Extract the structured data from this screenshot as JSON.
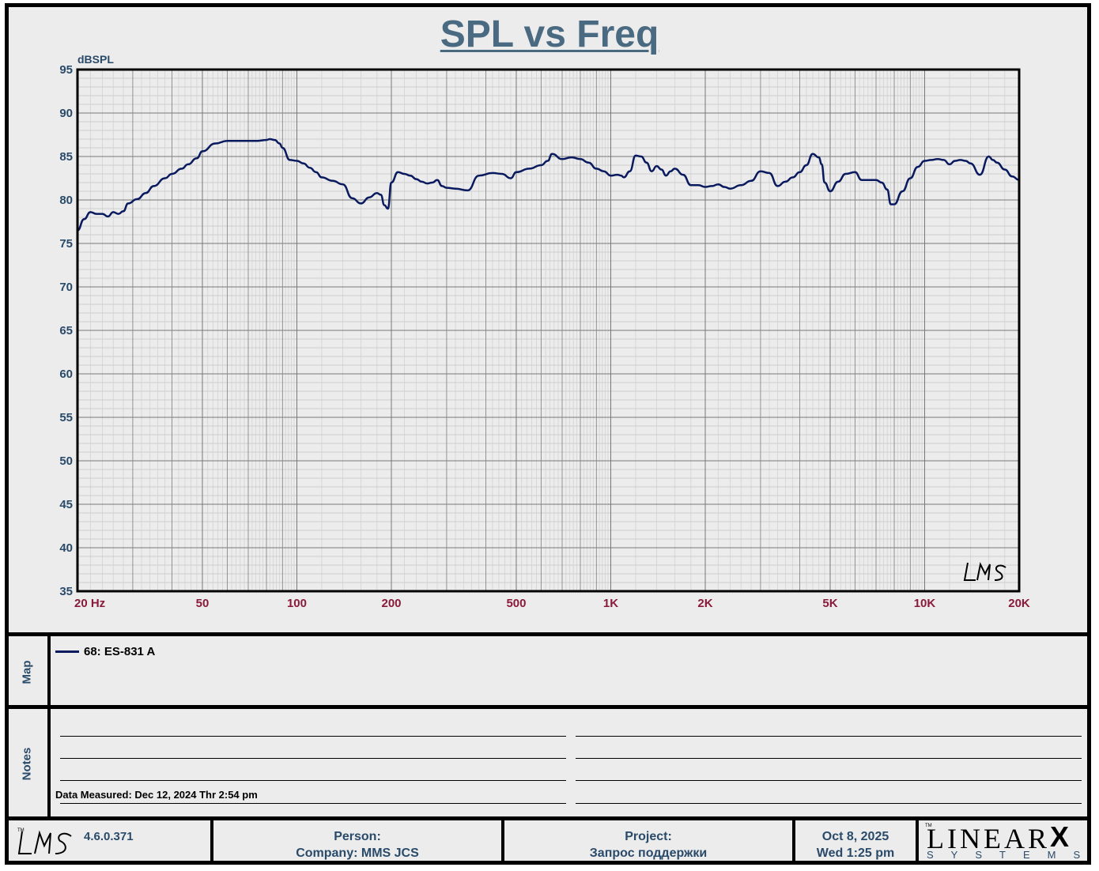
{
  "title": "SPL vs Freq",
  "chart_data": {
    "type": "line",
    "title": "SPL vs Freq",
    "ylabel": "dBSPL",
    "xscale": "log",
    "xlim": [
      20,
      20000
    ],
    "ylim": [
      35,
      95
    ],
    "yticks": [
      "95",
      "90",
      "85",
      "80",
      "75",
      "70",
      "65",
      "60",
      "55",
      "50",
      "45",
      "40",
      "35"
    ],
    "xticks": [
      {
        "value": 20,
        "label": "20  Hz"
      },
      {
        "value": 50,
        "label": "50"
      },
      {
        "value": 100,
        "label": "100"
      },
      {
        "value": 200,
        "label": "200"
      },
      {
        "value": 500,
        "label": "500"
      },
      {
        "value": 1000,
        "label": "1K"
      },
      {
        "value": 2000,
        "label": "2K"
      },
      {
        "value": 5000,
        "label": "5K"
      },
      {
        "value": 10000,
        "label": "10K"
      },
      {
        "value": 20000,
        "label": "20K"
      }
    ],
    "grid": true,
    "series": [
      {
        "name": "68: ES-831 A",
        "color": "#0a1a5e",
        "x": [
          20,
          21,
          22,
          23,
          24,
          25,
          26,
          27,
          28,
          29,
          31,
          33,
          35,
          38,
          40,
          43,
          45,
          48,
          50,
          55,
          60,
          70,
          75,
          80,
          82,
          85,
          88,
          90,
          95,
          100,
          105,
          110,
          115,
          120,
          130,
          140,
          150,
          160,
          170,
          180,
          185,
          190,
          195,
          200,
          210,
          220,
          230,
          240,
          250,
          260,
          270,
          280,
          290,
          300,
          320,
          350,
          380,
          420,
          450,
          480,
          500,
          550,
          600,
          630,
          650,
          700,
          750,
          800,
          850,
          900,
          950,
          1000,
          1050,
          1080,
          1100,
          1150,
          1200,
          1250,
          1300,
          1350,
          1400,
          1450,
          1500,
          1550,
          1600,
          1700,
          1800,
          1900,
          2000,
          2100,
          2200,
          2300,
          2400,
          2600,
          2800,
          3000,
          3200,
          3400,
          3600,
          3800,
          4000,
          4200,
          4400,
          4600,
          4700,
          4800,
          5000,
          5300,
          5600,
          6000,
          6300,
          6600,
          7000,
          7300,
          7600,
          7800,
          8000,
          8500,
          9000,
          9500,
          10000,
          10500,
          11000,
          11500,
          12000,
          12500,
          13000,
          13500,
          14000,
          15000,
          16000,
          16500,
          17000,
          18000,
          19000,
          20000
        ],
        "y": [
          76.5,
          77.8,
          78.6,
          78.4,
          78.4,
          78.1,
          78.6,
          78.4,
          78.7,
          79.6,
          80.1,
          80.8,
          81.6,
          82.5,
          83.0,
          83.6,
          84.1,
          84.8,
          85.6,
          86.5,
          86.8,
          86.8,
          86.8,
          86.9,
          87.0,
          86.9,
          86.5,
          86.0,
          84.6,
          84.5,
          84.2,
          83.7,
          83.2,
          82.6,
          82.2,
          81.8,
          80.2,
          79.6,
          80.3,
          80.8,
          80.6,
          79.4,
          79.0,
          82.0,
          83.2,
          83.0,
          82.8,
          82.4,
          82.1,
          81.9,
          82.0,
          82.3,
          81.6,
          81.4,
          81.3,
          81.1,
          82.8,
          83.1,
          83.0,
          82.5,
          83.2,
          83.6,
          84.0,
          84.5,
          85.3,
          84.7,
          84.9,
          84.7,
          84.3,
          83.6,
          83.3,
          82.8,
          82.9,
          82.8,
          82.6,
          83.3,
          85.1,
          85.0,
          84.3,
          83.3,
          83.9,
          83.5,
          82.8,
          83.3,
          83.6,
          82.9,
          81.7,
          81.7,
          81.5,
          81.6,
          81.8,
          81.5,
          81.3,
          81.7,
          82.2,
          83.3,
          83.1,
          81.6,
          82.1,
          82.6,
          83.2,
          84.0,
          85.3,
          84.9,
          84.1,
          82.0,
          81.0,
          82.1,
          83.0,
          83.2,
          82.3,
          82.3,
          82.3,
          82.0,
          81.2,
          79.5,
          79.5,
          81.0,
          82.5,
          83.8,
          84.5,
          84.6,
          84.7,
          84.6,
          84.1,
          84.5,
          84.6,
          84.5,
          84.2,
          82.9,
          85.0,
          84.6,
          84.3,
          83.5,
          82.7,
          82.3
        ]
      }
    ]
  },
  "map": {
    "label": "Map",
    "legend": [
      {
        "swatch_color": "#0a1a5e",
        "text": "68: ES-831 A"
      }
    ]
  },
  "notes": {
    "label": "Notes",
    "measured": "Data Measured: Dec 12, 2024  Thr  2:54 pm"
  },
  "footer": {
    "logo_text": "LMS",
    "version": "4.6.0.371",
    "person_label": "Person:",
    "company": "Company: MMS JCS",
    "project_label": "Project:",
    "project_name": "Запрос поддержки",
    "date": "Oct  8, 2025",
    "day_time": "Wed  1:25 pm",
    "brand_word": "LINEAR",
    "brand_x": "X",
    "brand_sub": "SYSTEMS"
  }
}
